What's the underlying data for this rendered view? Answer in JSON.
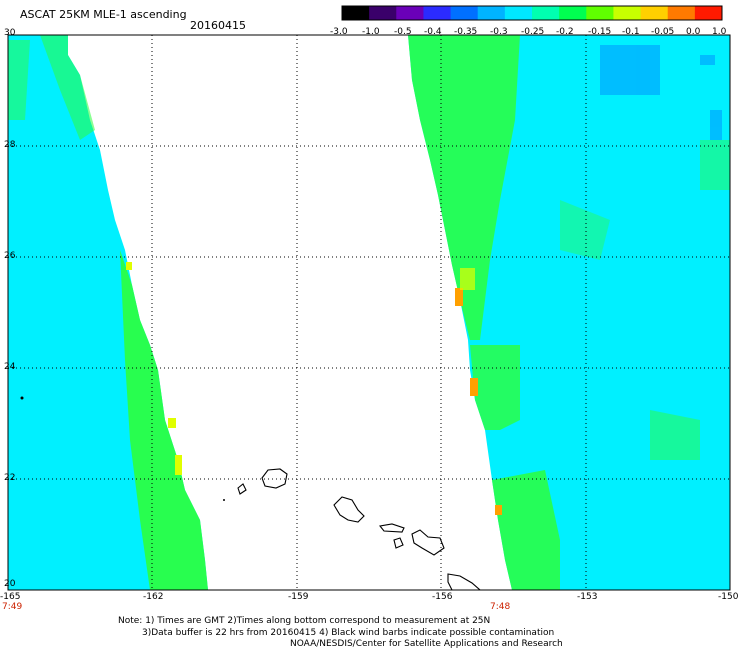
{
  "title": "ASCAT 25KM MLE-1 ascending",
  "date": "20160415",
  "colorbar": {
    "tick_labels": [
      "-3.0",
      "-1.0",
      "-0.5",
      "-0.4",
      "-0.35",
      "-0.3",
      "-0.25",
      "-0.2",
      "-0.15",
      "-0.1",
      "-0.05",
      "0.0",
      "1.0"
    ],
    "colors": [
      "#000000",
      "#3a006a",
      "#6a00b8",
      "#2b2bff",
      "#0070ff",
      "#00b4ff",
      "#00e8ff",
      "#00ffb0",
      "#00ff50",
      "#60ff00",
      "#c8ff00",
      "#ffd000",
      "#ff7a00",
      "#ff1a00"
    ]
  },
  "lat_labels": [
    "30",
    "28",
    "26",
    "24",
    "22",
    "20"
  ],
  "lon_labels": [
    "-165",
    "-162",
    "-159",
    "-156",
    "-153",
    "-150"
  ],
  "times": [
    "7:49",
    "7:48"
  ],
  "notes": [
    "Note: 1) Times are GMT 2)Times along bottom correspond to measurement at 25N",
    "3)Data buffer is 22 hrs from 20160415 4) Black wind barbs indicate possible contamination",
    "NOAA/NESDIS/Center for Satellite Applications and Research"
  ],
  "palette": {
    "cyan": "#00f0ff",
    "aqua": "#00ffd8",
    "green": "#2cff3c",
    "lime": "#90ff00",
    "yellow": "#e0ff00",
    "orange": "#ffa000",
    "blue": "#00a8ff"
  }
}
